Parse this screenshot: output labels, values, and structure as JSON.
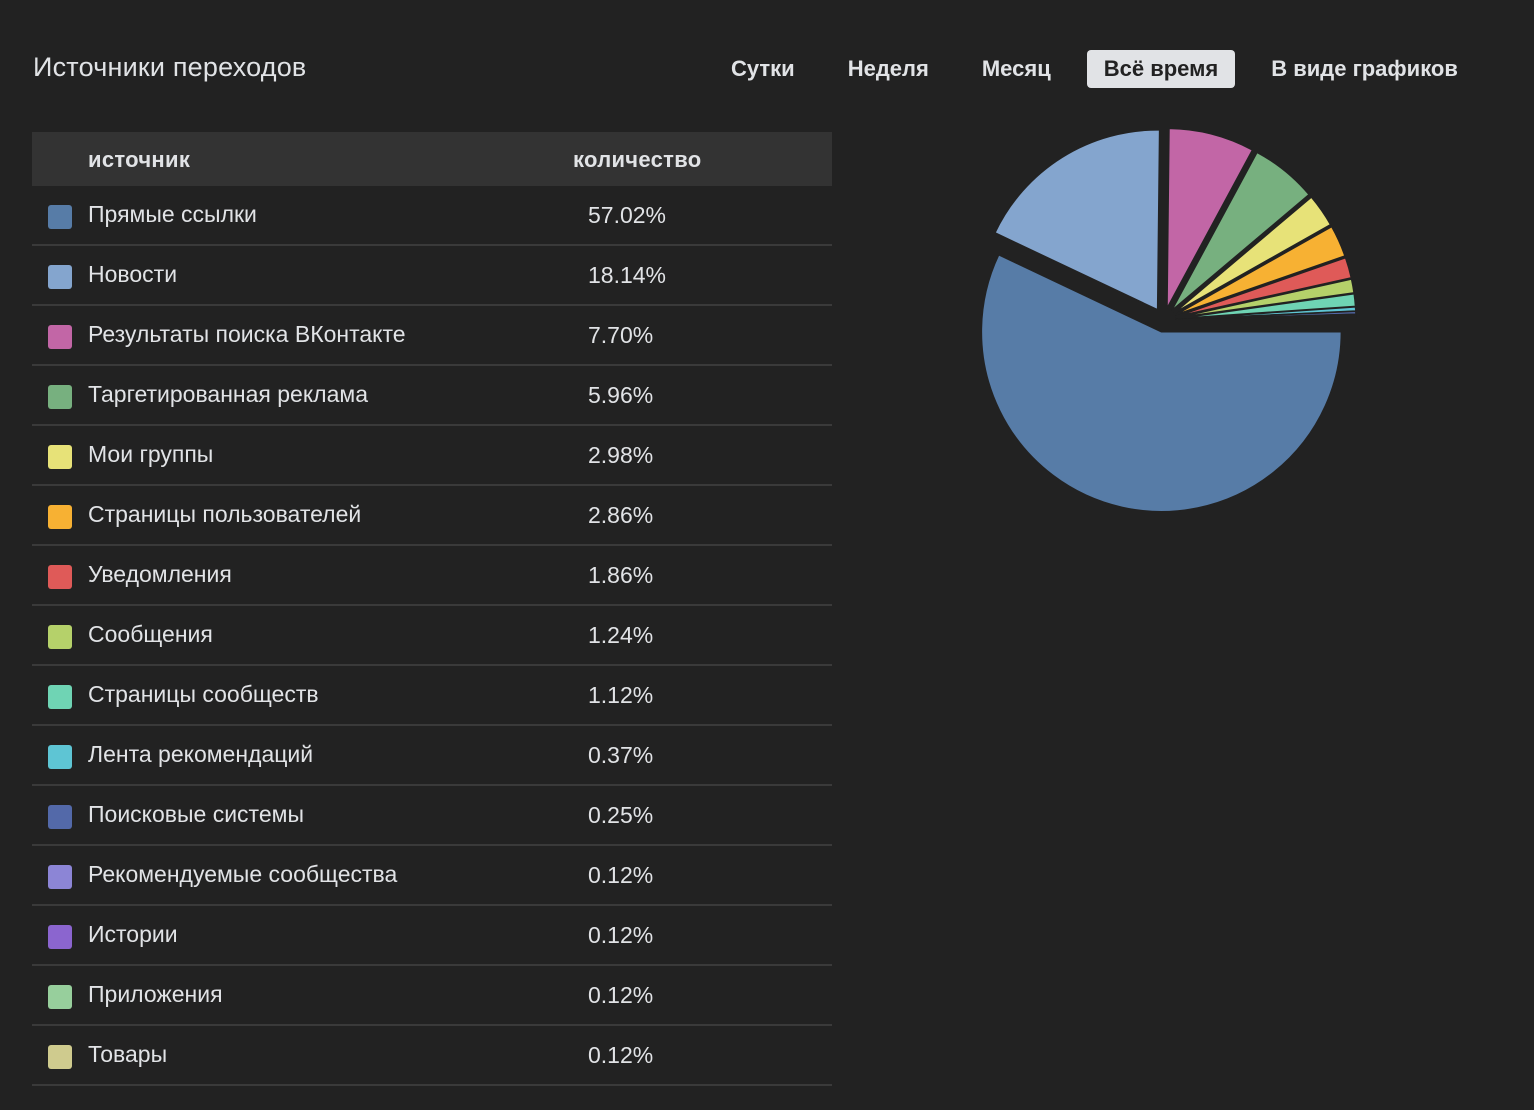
{
  "title": "Источники переходов",
  "tabs": [
    {
      "label": "Сутки",
      "active": false
    },
    {
      "label": "Неделя",
      "active": false
    },
    {
      "label": "Месяц",
      "active": false
    },
    {
      "label": "Всё время",
      "active": true
    },
    {
      "label": "В виде графиков",
      "active": false
    }
  ],
  "table": {
    "col_source": "источник",
    "col_count": "количество",
    "rows": [
      {
        "label": "Прямые ссылки",
        "value": "57.02%",
        "color": "#577ca7"
      },
      {
        "label": "Новости",
        "value": "18.14%",
        "color": "#84a5ce"
      },
      {
        "label": "Результаты поиска ВКонтакте",
        "value": "7.70%",
        "color": "#c266a6"
      },
      {
        "label": "Таргетированная реклама",
        "value": "5.96%",
        "color": "#77b07f"
      },
      {
        "label": "Мои группы",
        "value": "2.98%",
        "color": "#e7e278"
      },
      {
        "label": "Страницы пользователей",
        "value": "2.86%",
        "color": "#f7b133"
      },
      {
        "label": "Уведомления",
        "value": "1.86%",
        "color": "#df5a58"
      },
      {
        "label": "Сообщения",
        "value": "1.24%",
        "color": "#b5d16a"
      },
      {
        "label": "Страницы сообществ",
        "value": "1.12%",
        "color": "#6fd4b4"
      },
      {
        "label": "Лента рекомендаций",
        "value": "0.37%",
        "color": "#5ec5d4"
      },
      {
        "label": "Поисковые системы",
        "value": "0.25%",
        "color": "#5369a9"
      },
      {
        "label": "Рекомендуемые сообщества",
        "value": "0.12%",
        "color": "#8c85d6"
      },
      {
        "label": "Истории",
        "value": "0.12%",
        "color": "#8b65cf"
      },
      {
        "label": "Приложения",
        "value": "0.12%",
        "color": "#97cf9c"
      },
      {
        "label": "Товары",
        "value": "0.12%",
        "color": "#cfcb8e"
      }
    ]
  },
  "chart_data": {
    "type": "pie",
    "categories": [
      "Прямые ссылки",
      "Новости",
      "Результаты поиска ВКонтакте",
      "Таргетированная реклама",
      "Мои группы",
      "Страницы пользователей",
      "Уведомления",
      "Сообщения",
      "Страницы сообществ",
      "Лента рекомендаций",
      "Поисковые системы",
      "Рекомендуемые сообщества",
      "Истории",
      "Приложения",
      "Товары"
    ],
    "values": [
      57.02,
      18.14,
      7.7,
      5.96,
      2.98,
      2.86,
      1.86,
      1.24,
      1.12,
      0.37,
      0.25,
      0.12,
      0.12,
      0.12,
      0.12
    ],
    "colors": [
      "#577ca7",
      "#84a5ce",
      "#c266a6",
      "#77b07f",
      "#e7e278",
      "#f7b133",
      "#df5a58",
      "#b5d16a",
      "#6fd4b4",
      "#5ec5d4",
      "#5369a9",
      "#8c85d6",
      "#8b65cf",
      "#97cf9c",
      "#cfcb8e"
    ],
    "title": "",
    "exploded": true,
    "legend": "table-left"
  }
}
